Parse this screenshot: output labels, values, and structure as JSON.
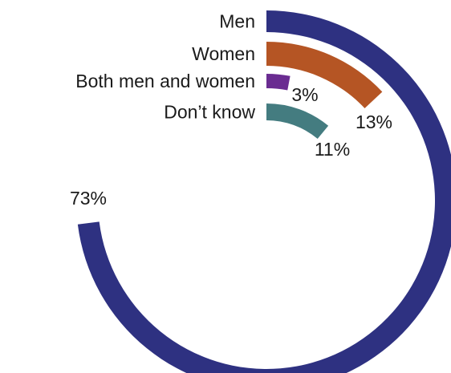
{
  "chart_data": {
    "type": "radial-bar",
    "value_suffix": "%",
    "max_value": 100,
    "categories": [
      "Men",
      "Women",
      "Both men and women",
      "Don’t know"
    ],
    "values": [
      73,
      13,
      3,
      11
    ],
    "colors": [
      "#2e3181",
      "#b55524",
      "#6a2c91",
      "#447c80"
    ],
    "value_labels": [
      "73%",
      "13%",
      "3%",
      "11%"
    ]
  }
}
